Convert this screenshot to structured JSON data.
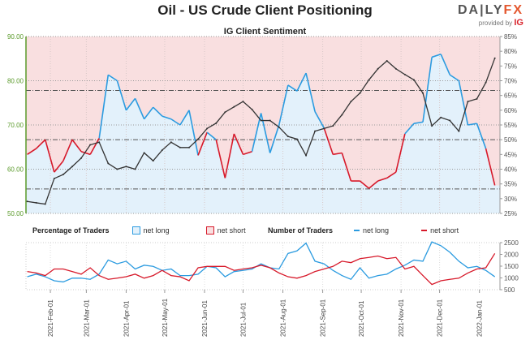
{
  "header": {
    "title": "Oil - US Crude Client Positioning",
    "logo_text": "DAILYFX",
    "provided_by": "provided by",
    "provider": "IG"
  },
  "legend": {
    "pct_label": "Percentage of Traders",
    "net_long": "net long",
    "net_short": "net short",
    "num_label": "Number of Traders",
    "num_long": "net long",
    "num_short": "net short"
  },
  "colors": {
    "net_long": "#2b9be0",
    "net_short": "#d7192a",
    "price": "#333333",
    "above_fill": "#f9dfe0",
    "below_fill": "#e3f1fb",
    "price_axis": "#5a9a2a"
  },
  "chart_data": [
    {
      "type": "line",
      "title": "IG Client Sentiment",
      "xlim": [
        "2021-01-13",
        "2022-01-17"
      ],
      "ylim_left": [
        50,
        90
      ],
      "ylim_right_pct": [
        25,
        85
      ],
      "yticks_left": [
        "50.00",
        "60.00",
        "70.00",
        "80.00",
        "90.00"
      ],
      "yticks_right": [
        "25%",
        "30%",
        "35%",
        "40%",
        "45%",
        "50%",
        "55%",
        "60%",
        "65%",
        "70%",
        "75%",
        "80%",
        "85%"
      ],
      "reference_levels_pct": [
        33.3,
        50,
        66.7
      ],
      "grid": true,
      "x": [
        "2021-01-14",
        "2021-01-21",
        "2021-01-28",
        "2021-02-04",
        "2021-02-11",
        "2021-02-18",
        "2021-02-25",
        "2021-03-04",
        "2021-03-11",
        "2021-03-18",
        "2021-03-25",
        "2021-04-01",
        "2021-04-08",
        "2021-04-15",
        "2021-04-22",
        "2021-04-29",
        "2021-05-06",
        "2021-05-13",
        "2021-05-20",
        "2021-05-27",
        "2021-06-03",
        "2021-06-10",
        "2021-06-17",
        "2021-06-24",
        "2021-07-01",
        "2021-07-08",
        "2021-07-15",
        "2021-07-22",
        "2021-07-29",
        "2021-08-05",
        "2021-08-12",
        "2021-08-19",
        "2021-08-26",
        "2021-09-02",
        "2021-09-09",
        "2021-09-16",
        "2021-09-23",
        "2021-09-30",
        "2021-10-07",
        "2021-10-14",
        "2021-10-21",
        "2021-10-28",
        "2021-11-04",
        "2021-11-11",
        "2021-11-18",
        "2021-11-25",
        "2021-12-02",
        "2021-12-09",
        "2021-12-16",
        "2021-12-23",
        "2021-12-30",
        "2022-01-06",
        "2022-01-13"
      ],
      "series": [
        {
          "axis": "left",
          "values": [
            52.7,
            52.4,
            52.1,
            57.9,
            58.8,
            60.6,
            62.5,
            65.5,
            66.1,
            61.3,
            60.0,
            60.6,
            60.0,
            63.7,
            61.9,
            64.3,
            66.1,
            64.9,
            64.9,
            66.8,
            69.2,
            70.4,
            72.9,
            74.1,
            75.3,
            73.5,
            71.0,
            71.0,
            69.5,
            67.4,
            66.8,
            63.1,
            68.6,
            69.2,
            69.8,
            72.3,
            75.3,
            77.2,
            80.2,
            82.7,
            84.5,
            82.7,
            81.4,
            80.2,
            77.2,
            69.8,
            71.7,
            71.0,
            68.6,
            75.3,
            75.9,
            79.6,
            85.1
          ]
        },
        {
          "axis": "right",
          "values": [
            45,
            47,
            50,
            39,
            42.8,
            50,
            46,
            45,
            50.5,
            72,
            70,
            60,
            64,
            57,
            61,
            58,
            57,
            55,
            60,
            44.7,
            52.5,
            50,
            37,
            52,
            45,
            46,
            59,
            45.5,
            55,
            68.5,
            66.5,
            72.6,
            59.5,
            54,
            45,
            45.5,
            36,
            36,
            33.5,
            36,
            37,
            39,
            52,
            55.5,
            56,
            78,
            79,
            72,
            70,
            55,
            55.5,
            47,
            34.5
          ]
        }
      ]
    },
    {
      "type": "line",
      "ylim": [
        500,
        2500
      ],
      "yticks": [
        "500",
        "1000",
        "1500",
        "2000",
        "2500"
      ],
      "xtick_labels": [
        "2021-Feb-01",
        "2021-Mar-01",
        "2021-Apr-01",
        "2021-May-01",
        "2021-Jun-01",
        "2021-Jul-01",
        "2021-Aug-01",
        "2021-Sep-01",
        "2021-Oct-01",
        "2021-Nov-01",
        "2021-Dec-01",
        "2022-Jan-01"
      ],
      "series": [
        {
          "name": "net long",
          "values": [
            1050,
            1160,
            1050,
            880,
            830,
            990,
            990,
            940,
            1160,
            1760,
            1600,
            1710,
            1380,
            1540,
            1490,
            1320,
            1380,
            1100,
            1100,
            1160,
            1490,
            1430,
            1050,
            1270,
            1320,
            1380,
            1600,
            1430,
            1380,
            2040,
            2150,
            2480,
            1710,
            1600,
            1320,
            1100,
            940,
            1430,
            990,
            1100,
            1160,
            1380,
            1540,
            1760,
            1710,
            2530,
            2370,
            2090,
            1710,
            1430,
            1490,
            1320,
            1050
          ]
        },
        {
          "name": "net short",
          "values": [
            1270,
            1210,
            1100,
            1380,
            1380,
            1270,
            1160,
            1430,
            1100,
            940,
            990,
            1050,
            1160,
            990,
            1100,
            1320,
            1100,
            1050,
            880,
            1430,
            1490,
            1490,
            1490,
            1320,
            1380,
            1430,
            1540,
            1430,
            1210,
            1050,
            990,
            1100,
            1270,
            1380,
            1490,
            1710,
            1650,
            1820,
            1870,
            1930,
            1820,
            1870,
            1380,
            1490,
            1100,
            720,
            880,
            940,
            990,
            1210,
            1380,
            1430,
            2040
          ]
        }
      ]
    }
  ]
}
